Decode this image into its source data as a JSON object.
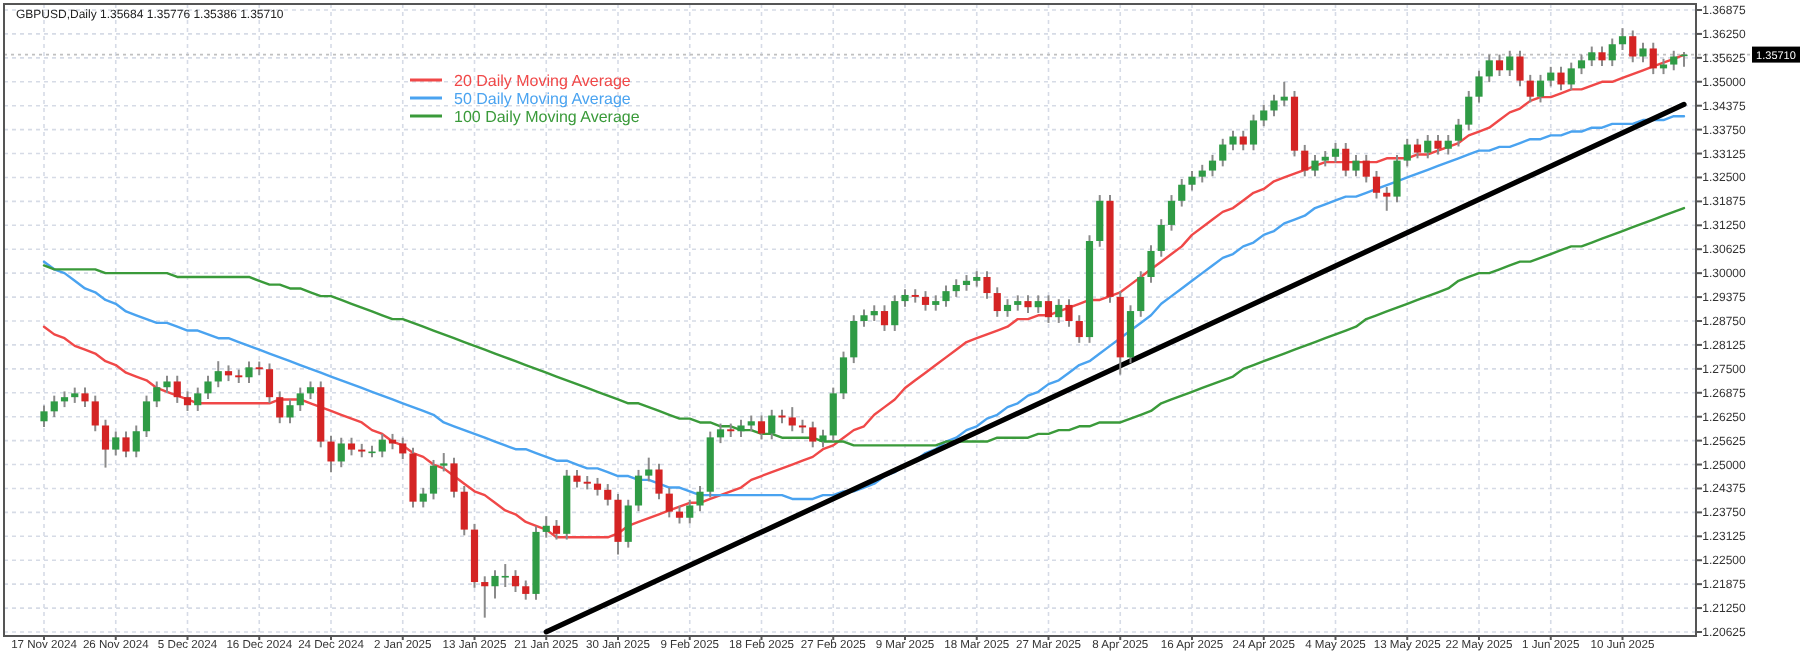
{
  "chart_data": {
    "type": "candlestick",
    "title": "GBPUSD,Daily  1.35684 1.35776 1.35386 1.35710",
    "categories": [
      "17 Nov 2024",
      null,
      null,
      null,
      null,
      null,
      null,
      "26 Nov 2024",
      null,
      null,
      null,
      null,
      null,
      null,
      "5 Dec 2024",
      null,
      null,
      null,
      null,
      null,
      null,
      "16 Dec 2024",
      null,
      null,
      null,
      null,
      null,
      null,
      "24 Dec 2024",
      null,
      null,
      null,
      null,
      null,
      null,
      "2 Jan 2025",
      null,
      null,
      null,
      null,
      null,
      null,
      "13 Jan 2025",
      null,
      null,
      null,
      null,
      null,
      null,
      "21 Jan 2025",
      null,
      null,
      null,
      null,
      null,
      null,
      "30 Jan 2025",
      null,
      null,
      null,
      null,
      null,
      null,
      "9 Feb 2025",
      null,
      null,
      null,
      null,
      null,
      null,
      "18 Feb 2025",
      null,
      null,
      null,
      null,
      null,
      null,
      "27 Feb 2025",
      null,
      null,
      null,
      null,
      null,
      null,
      "9 Mar 2025",
      null,
      null,
      null,
      null,
      null,
      null,
      "18 Mar 2025",
      null,
      null,
      null,
      null,
      null,
      null,
      "27 Mar 2025",
      null,
      null,
      null,
      null,
      null,
      null,
      "8 Apr 2025",
      null,
      null,
      null,
      null,
      null,
      null,
      "16 Apr 2025",
      null,
      null,
      null,
      null,
      null,
      null,
      "24 Apr 2025",
      null,
      null,
      null,
      null,
      null,
      null,
      "4 May 2025",
      null,
      null,
      null,
      null,
      null,
      null,
      "13 May 2025",
      null,
      null,
      null,
      null,
      null,
      null,
      "22 May 2025",
      null,
      null,
      null,
      null,
      null,
      null,
      "1 Jun 2025",
      null,
      null,
      null,
      null,
      null,
      null,
      "10 Jun 2025",
      null,
      null,
      null,
      null,
      null,
      null
    ],
    "ohlc": [
      [
        1.2613,
        1.2654,
        1.2598,
        1.2639
      ],
      [
        1.2639,
        1.268,
        1.2624,
        1.2665
      ],
      [
        1.2665,
        1.2691,
        1.265,
        1.2676
      ],
      [
        1.2676,
        1.2701,
        1.2661,
        1.2686
      ],
      [
        1.2686,
        1.2701,
        1.265,
        1.2665
      ],
      [
        1.2665,
        1.268,
        1.2587,
        1.2602
      ],
      [
        1.2602,
        1.2617,
        1.2492,
        1.2539
      ],
      [
        1.2539,
        1.2586,
        1.2524,
        1.2571
      ],
      [
        1.2571,
        1.2586,
        1.2519,
        1.2534
      ],
      [
        1.2534,
        1.2602,
        1.2519,
        1.2587
      ],
      [
        1.2587,
        1.268,
        1.2572,
        1.2665
      ],
      [
        1.2665,
        1.2717,
        1.265,
        1.2702
      ],
      [
        1.2702,
        1.2732,
        1.2687,
        1.2717
      ],
      [
        1.2717,
        1.2732,
        1.2661,
        1.2676
      ],
      [
        1.2676,
        1.2691,
        1.264,
        1.2655
      ],
      [
        1.2655,
        1.2701,
        1.264,
        1.2686
      ],
      [
        1.2686,
        1.2732,
        1.2671,
        1.2717
      ],
      [
        1.2717,
        1.277,
        1.2702,
        1.2744
      ],
      [
        1.2744,
        1.2759,
        1.2718,
        1.2733
      ],
      [
        1.2733,
        1.2748,
        1.2713,
        1.2728
      ],
      [
        1.2728,
        1.2769,
        1.2713,
        1.2754
      ],
      [
        1.2754,
        1.2769,
        1.2734,
        1.2749
      ],
      [
        1.2749,
        1.2764,
        1.2661,
        1.2676
      ],
      [
        1.2676,
        1.2691,
        1.2608,
        1.2623
      ],
      [
        1.2623,
        1.267,
        1.2608,
        1.2655
      ],
      [
        1.2655,
        1.2701,
        1.264,
        1.2686
      ],
      [
        1.2686,
        1.2717,
        1.2671,
        1.2702
      ],
      [
        1.2702,
        1.2717,
        1.2545,
        1.256
      ],
      [
        1.256,
        1.2575,
        1.248,
        1.2508
      ],
      [
        1.2508,
        1.257,
        1.2493,
        1.2555
      ],
      [
        1.2555,
        1.257,
        1.2524,
        1.2539
      ],
      [
        1.2539,
        1.2554,
        1.2519,
        1.2534
      ],
      [
        1.2534,
        1.2549,
        1.2519,
        1.2534
      ],
      [
        1.2534,
        1.258,
        1.2519,
        1.2565
      ],
      [
        1.2565,
        1.258,
        1.254,
        1.2555
      ],
      [
        1.2555,
        1.257,
        1.2514,
        1.2529
      ],
      [
        1.2529,
        1.2544,
        1.2388,
        1.2403
      ],
      [
        1.2403,
        1.2439,
        1.2388,
        1.2424
      ],
      [
        1.2424,
        1.2512,
        1.2409,
        1.2497
      ],
      [
        1.2497,
        1.253,
        1.2482,
        1.2503
      ],
      [
        1.2503,
        1.2518,
        1.2414,
        1.2429
      ],
      [
        1.2429,
        1.2444,
        1.2315,
        1.233
      ],
      [
        1.233,
        1.2345,
        1.2178,
        1.2193
      ],
      [
        1.2193,
        1.2208,
        1.21,
        1.2182
      ],
      [
        1.2182,
        1.2224,
        1.215,
        1.2209
      ],
      [
        1.2209,
        1.224,
        1.218,
        1.2209
      ],
      [
        1.2209,
        1.2224,
        1.2167,
        1.2182
      ],
      [
        1.2182,
        1.2197,
        1.2147,
        1.2162
      ],
      [
        1.2162,
        1.2339,
        1.2147,
        1.2324
      ],
      [
        1.2324,
        1.2365,
        1.2309,
        1.234
      ],
      [
        1.234,
        1.2355,
        1.2304,
        1.2319
      ],
      [
        1.2319,
        1.2486,
        1.2304,
        1.2471
      ],
      [
        1.2471,
        1.2486,
        1.244,
        1.2455
      ],
      [
        1.2455,
        1.247,
        1.2435,
        1.245
      ],
      [
        1.245,
        1.2465,
        1.2419,
        1.2434
      ],
      [
        1.2434,
        1.2449,
        1.2393,
        1.2408
      ],
      [
        1.2408,
        1.2423,
        1.2265,
        1.2298
      ],
      [
        1.2298,
        1.2408,
        1.2283,
        1.2393
      ],
      [
        1.2393,
        1.2486,
        1.2378,
        1.2471
      ],
      [
        1.2471,
        1.2518,
        1.2456,
        1.2487
      ],
      [
        1.2487,
        1.2502,
        1.2409,
        1.2424
      ],
      [
        1.2424,
        1.2439,
        1.2362,
        1.2377
      ],
      [
        1.2377,
        1.2392,
        1.2346,
        1.2361
      ],
      [
        1.2361,
        1.2408,
        1.2346,
        1.2393
      ],
      [
        1.2393,
        1.2444,
        1.2378,
        1.2429
      ],
      [
        1.2429,
        1.2586,
        1.2414,
        1.2571
      ],
      [
        1.2571,
        1.2607,
        1.2556,
        1.2592
      ],
      [
        1.2592,
        1.2607,
        1.2572,
        1.2587
      ],
      [
        1.2587,
        1.2617,
        1.2572,
        1.2602
      ],
      [
        1.2602,
        1.2628,
        1.2587,
        1.2613
      ],
      [
        1.2613,
        1.2628,
        1.2566,
        1.2581
      ],
      [
        1.2581,
        1.2643,
        1.2566,
        1.2628
      ],
      [
        1.2628,
        1.2643,
        1.2608,
        1.2623
      ],
      [
        1.2623,
        1.265,
        1.2587,
        1.2602
      ],
      [
        1.2602,
        1.2617,
        1.2582,
        1.2597
      ],
      [
        1.2597,
        1.2612,
        1.2545,
        1.256
      ],
      [
        1.256,
        1.2591,
        1.2545,
        1.2576
      ],
      [
        1.2576,
        1.2701,
        1.2561,
        1.2686
      ],
      [
        1.2686,
        1.2795,
        1.2671,
        1.278
      ],
      [
        1.278,
        1.289,
        1.2765,
        1.2875
      ],
      [
        1.2875,
        1.2905,
        1.286,
        1.289
      ],
      [
        1.289,
        1.2916,
        1.2875,
        1.2901
      ],
      [
        1.2901,
        1.2916,
        1.2849,
        1.2864
      ],
      [
        1.2864,
        1.2942,
        1.2849,
        1.2927
      ],
      [
        1.2927,
        1.2958,
        1.2912,
        1.2943
      ],
      [
        1.2943,
        1.2958,
        1.2923,
        1.2938
      ],
      [
        1.2938,
        1.2953,
        1.2902,
        1.2917
      ],
      [
        1.2917,
        1.2942,
        1.2902,
        1.2927
      ],
      [
        1.2927,
        1.2968,
        1.2912,
        1.2953
      ],
      [
        1.2953,
        1.2984,
        1.2938,
        1.2969
      ],
      [
        1.2969,
        1.2995,
        1.2954,
        1.298
      ],
      [
        1.298,
        1.3005,
        1.2965,
        1.299
      ],
      [
        1.299,
        1.3005,
        1.2933,
        1.2948
      ],
      [
        1.2948,
        1.2963,
        1.2886,
        1.2901
      ],
      [
        1.2901,
        1.2932,
        1.2886,
        1.2917
      ],
      [
        1.2917,
        1.2942,
        1.2902,
        1.2927
      ],
      [
        1.2927,
        1.2942,
        1.2896,
        1.2911
      ],
      [
        1.2911,
        1.2942,
        1.2896,
        1.2927
      ],
      [
        1.2927,
        1.2942,
        1.287,
        1.2885
      ],
      [
        1.2885,
        1.2932,
        1.287,
        1.2917
      ],
      [
        1.2917,
        1.2932,
        1.286,
        1.2875
      ],
      [
        1.2875,
        1.289,
        1.2818,
        1.2833
      ],
      [
        1.2833,
        1.3099,
        1.2818,
        1.3084
      ],
      [
        1.3084,
        1.3204,
        1.3069,
        1.3189
      ],
      [
        1.3189,
        1.3204,
        1.2923,
        1.2938
      ],
      [
        1.2938,
        1.2953,
        1.2735,
        1.278
      ],
      [
        1.278,
        1.2916,
        1.2765,
        1.2901
      ],
      [
        1.2901,
        1.3005,
        1.2886,
        1.299
      ],
      [
        1.299,
        1.3073,
        1.2975,
        1.3058
      ],
      [
        1.3058,
        1.3141,
        1.3043,
        1.3126
      ],
      [
        1.3126,
        1.3204,
        1.3111,
        1.3189
      ],
      [
        1.3189,
        1.3246,
        1.3174,
        1.3231
      ],
      [
        1.3231,
        1.3267,
        1.3216,
        1.3252
      ],
      [
        1.3252,
        1.3283,
        1.3237,
        1.3268
      ],
      [
        1.3268,
        1.3309,
        1.3253,
        1.3294
      ],
      [
        1.3294,
        1.3351,
        1.3279,
        1.3336
      ],
      [
        1.3336,
        1.3372,
        1.3321,
        1.3357
      ],
      [
        1.3357,
        1.3372,
        1.3321,
        1.3336
      ],
      [
        1.3336,
        1.3414,
        1.3321,
        1.3399
      ],
      [
        1.3399,
        1.344,
        1.3384,
        1.3425
      ],
      [
        1.3425,
        1.3466,
        1.341,
        1.3451
      ],
      [
        1.3451,
        1.35,
        1.3436,
        1.3461
      ],
      [
        1.3461,
        1.3476,
        1.3305,
        1.332
      ],
      [
        1.332,
        1.3335,
        1.3253,
        1.3268
      ],
      [
        1.3268,
        1.3309,
        1.3253,
        1.3294
      ],
      [
        1.3294,
        1.3319,
        1.3279,
        1.3304
      ],
      [
        1.3304,
        1.334,
        1.3289,
        1.3325
      ],
      [
        1.3325,
        1.334,
        1.3253,
        1.3268
      ],
      [
        1.3268,
        1.3309,
        1.3253,
        1.3294
      ],
      [
        1.3294,
        1.3309,
        1.3237,
        1.3252
      ],
      [
        1.3252,
        1.3267,
        1.3195,
        1.321
      ],
      [
        1.321,
        1.3225,
        1.3163,
        1.32
      ],
      [
        1.32,
        1.3309,
        1.3185,
        1.3294
      ],
      [
        1.3294,
        1.3351,
        1.3279,
        1.3336
      ],
      [
        1.3336,
        1.3351,
        1.33,
        1.3315
      ],
      [
        1.3315,
        1.3361,
        1.33,
        1.3346
      ],
      [
        1.3346,
        1.3361,
        1.331,
        1.3325
      ],
      [
        1.3325,
        1.3361,
        1.331,
        1.3346
      ],
      [
        1.3346,
        1.3403,
        1.3331,
        1.3388
      ],
      [
        1.3388,
        1.3476,
        1.3373,
        1.3461
      ],
      [
        1.3461,
        1.3529,
        1.3446,
        1.3514
      ],
      [
        1.3514,
        1.3571,
        1.3499,
        1.3556
      ],
      [
        1.3556,
        1.3571,
        1.3515,
        1.353
      ],
      [
        1.353,
        1.3581,
        1.3515,
        1.3566
      ],
      [
        1.3566,
        1.3581,
        1.3488,
        1.3503
      ],
      [
        1.3503,
        1.3518,
        1.3446,
        1.3461
      ],
      [
        1.3461,
        1.3518,
        1.3446,
        1.3503
      ],
      [
        1.3503,
        1.3539,
        1.3488,
        1.3524
      ],
      [
        1.3524,
        1.3539,
        1.3478,
        1.3493
      ],
      [
        1.3493,
        1.355,
        1.3478,
        1.3535
      ],
      [
        1.3535,
        1.3571,
        1.352,
        1.3556
      ],
      [
        1.3556,
        1.3592,
        1.3541,
        1.3577
      ],
      [
        1.3577,
        1.3592,
        1.3541,
        1.3556
      ],
      [
        1.3556,
        1.3613,
        1.3541,
        1.3598
      ],
      [
        1.3598,
        1.364,
        1.3583,
        1.3619
      ],
      [
        1.3619,
        1.3634,
        1.3551,
        1.3566
      ],
      [
        1.3566,
        1.3602,
        1.3551,
        1.3587
      ],
      [
        1.3587,
        1.3602,
        1.352,
        1.3535
      ],
      [
        1.3535,
        1.356,
        1.352,
        1.3545
      ],
      [
        1.3545,
        1.3581,
        1.353,
        1.3566
      ],
      [
        1.3568,
        1.3578,
        1.3539,
        1.3571
      ]
    ],
    "series": [
      {
        "type": "line",
        "name": "20 Daily Moving Average",
        "color": "#f04848",
        "values": [
          1.286,
          1.284,
          1.283,
          1.281,
          1.28,
          1.279,
          1.277,
          1.276,
          1.274,
          1.273,
          1.272,
          1.27,
          1.269,
          1.268,
          1.267,
          1.266,
          1.266,
          1.266,
          1.266,
          1.266,
          1.266,
          1.266,
          1.266,
          1.267,
          1.267,
          1.267,
          1.266,
          1.265,
          1.264,
          1.263,
          1.262,
          1.261,
          1.259,
          1.258,
          1.256,
          1.255,
          1.253,
          1.252,
          1.25,
          1.249,
          1.247,
          1.245,
          1.243,
          1.242,
          1.24,
          1.238,
          1.237,
          1.235,
          1.234,
          1.233,
          1.231,
          1.231,
          1.231,
          1.231,
          1.231,
          1.231,
          1.232,
          1.234,
          1.235,
          1.236,
          1.237,
          1.238,
          1.239,
          1.24,
          1.24,
          1.241,
          1.242,
          1.243,
          1.244,
          1.246,
          1.247,
          1.248,
          1.249,
          1.25,
          1.251,
          1.252,
          1.254,
          1.255,
          1.257,
          1.259,
          1.26,
          1.263,
          1.265,
          1.267,
          1.27,
          1.272,
          1.274,
          1.276,
          1.278,
          1.28,
          1.282,
          1.283,
          1.284,
          1.285,
          1.286,
          1.288,
          1.288,
          1.289,
          1.289,
          1.29,
          1.291,
          1.292,
          1.293,
          1.293,
          1.294,
          1.295,
          1.297,
          1.299,
          1.301,
          1.303,
          1.305,
          1.307,
          1.31,
          1.312,
          1.314,
          1.316,
          1.317,
          1.319,
          1.321,
          1.322,
          1.324,
          1.325,
          1.326,
          1.327,
          1.328,
          1.329,
          1.329,
          1.329,
          1.329,
          1.329,
          1.329,
          1.33,
          1.33,
          1.33,
          1.331,
          1.331,
          1.332,
          1.333,
          1.334,
          1.336,
          1.337,
          1.338,
          1.34,
          1.342,
          1.343,
          1.345,
          1.346,
          1.346,
          1.347,
          1.348,
          1.348,
          1.349,
          1.35,
          1.35,
          1.351,
          1.352,
          1.353,
          1.354,
          1.355,
          1.356,
          1.357
        ]
      },
      {
        "type": "line",
        "name": "50 Daily Moving Average",
        "color": "#4aa3f0",
        "values": [
          1.303,
          1.301,
          1.3,
          1.298,
          1.296,
          1.295,
          1.293,
          1.292,
          1.29,
          1.289,
          1.288,
          1.287,
          1.287,
          1.286,
          1.285,
          1.285,
          1.284,
          1.283,
          1.283,
          1.282,
          1.281,
          1.28,
          1.279,
          1.278,
          1.277,
          1.276,
          1.275,
          1.274,
          1.273,
          1.272,
          1.271,
          1.27,
          1.269,
          1.268,
          1.267,
          1.266,
          1.265,
          1.264,
          1.263,
          1.261,
          1.26,
          1.259,
          1.258,
          1.257,
          1.256,
          1.255,
          1.254,
          1.254,
          1.253,
          1.252,
          1.251,
          1.251,
          1.25,
          1.249,
          1.249,
          1.248,
          1.247,
          1.247,
          1.246,
          1.246,
          1.245,
          1.244,
          1.244,
          1.243,
          1.242,
          1.242,
          1.242,
          1.242,
          1.242,
          1.242,
          1.242,
          1.242,
          1.242,
          1.241,
          1.241,
          1.241,
          1.242,
          1.242,
          1.243,
          1.243,
          1.244,
          1.245,
          1.247,
          1.248,
          1.25,
          1.251,
          1.253,
          1.254,
          1.256,
          1.257,
          1.259,
          1.26,
          1.262,
          1.263,
          1.265,
          1.266,
          1.268,
          1.269,
          1.271,
          1.272,
          1.274,
          1.276,
          1.277,
          1.279,
          1.281,
          1.283,
          1.285,
          1.287,
          1.289,
          1.292,
          1.294,
          1.296,
          1.298,
          1.3,
          1.302,
          1.304,
          1.305,
          1.307,
          1.308,
          1.31,
          1.311,
          1.313,
          1.314,
          1.315,
          1.317,
          1.318,
          1.319,
          1.32,
          1.32,
          1.321,
          1.322,
          1.323,
          1.324,
          1.325,
          1.326,
          1.327,
          1.328,
          1.329,
          1.33,
          1.331,
          1.332,
          1.332,
          1.333,
          1.333,
          1.334,
          1.335,
          1.335,
          1.336,
          1.336,
          1.337,
          1.337,
          1.338,
          1.338,
          1.339,
          1.339,
          1.339,
          1.34,
          1.34,
          1.34,
          1.341,
          1.341
        ]
      },
      {
        "type": "line",
        "name": "100 Daily Moving Average",
        "color": "#3a9a3a",
        "values": [
          1.302,
          1.301,
          1.301,
          1.301,
          1.301,
          1.301,
          1.3,
          1.3,
          1.3,
          1.3,
          1.3,
          1.3,
          1.3,
          1.299,
          1.299,
          1.299,
          1.299,
          1.299,
          1.299,
          1.299,
          1.299,
          1.298,
          1.297,
          1.297,
          1.296,
          1.296,
          1.295,
          1.294,
          1.294,
          1.293,
          1.292,
          1.291,
          1.29,
          1.289,
          1.288,
          1.288,
          1.287,
          1.286,
          1.285,
          1.284,
          1.283,
          1.282,
          1.281,
          1.28,
          1.279,
          1.278,
          1.277,
          1.276,
          1.275,
          1.274,
          1.273,
          1.272,
          1.271,
          1.27,
          1.269,
          1.268,
          1.267,
          1.266,
          1.266,
          1.265,
          1.264,
          1.263,
          1.262,
          1.262,
          1.261,
          1.261,
          1.26,
          1.26,
          1.259,
          1.259,
          1.258,
          1.258,
          1.257,
          1.257,
          1.257,
          1.257,
          1.256,
          1.256,
          1.256,
          1.255,
          1.255,
          1.255,
          1.255,
          1.255,
          1.255,
          1.255,
          1.255,
          1.255,
          1.256,
          1.256,
          1.256,
          1.256,
          1.256,
          1.257,
          1.257,
          1.257,
          1.257,
          1.258,
          1.258,
          1.259,
          1.259,
          1.26,
          1.26,
          1.261,
          1.261,
          1.261,
          1.262,
          1.263,
          1.264,
          1.266,
          1.267,
          1.268,
          1.269,
          1.27,
          1.271,
          1.272,
          1.273,
          1.275,
          1.276,
          1.277,
          1.278,
          1.279,
          1.28,
          1.281,
          1.282,
          1.283,
          1.284,
          1.285,
          1.286,
          1.288,
          1.289,
          1.29,
          1.291,
          1.292,
          1.293,
          1.294,
          1.295,
          1.296,
          1.298,
          1.299,
          1.3,
          1.3,
          1.301,
          1.302,
          1.303,
          1.303,
          1.304,
          1.305,
          1.306,
          1.307,
          1.307,
          1.308,
          1.309,
          1.31,
          1.311,
          1.312,
          1.313,
          1.314,
          1.315,
          1.316,
          1.317
        ]
      },
      {
        "type": "line",
        "color": "#000000",
        "values": [
          null,
          null,
          null,
          null,
          null,
          null,
          null,
          null,
          null,
          null,
          null,
          null,
          null,
          null,
          null,
          null,
          null,
          null,
          null,
          null,
          null,
          null,
          null,
          null,
          null,
          null,
          null,
          null,
          null,
          null,
          null,
          null,
          null,
          null,
          null,
          null,
          null,
          null,
          null,
          null,
          null,
          null,
          null,
          null,
          null,
          null,
          null,
          null,
          null,
          1.2063,
          null,
          null,
          null,
          null,
          null,
          null,
          null,
          null,
          null,
          null,
          null,
          null,
          null,
          null,
          null,
          null,
          null,
          null,
          null,
          null,
          null,
          null,
          null,
          null,
          null,
          null,
          null,
          null,
          null,
          null,
          null,
          null,
          null,
          null,
          null,
          null,
          null,
          null,
          null,
          null,
          null,
          null,
          null,
          null,
          null,
          null,
          null,
          null,
          null,
          null,
          null,
          null,
          null,
          null,
          null,
          null,
          null,
          null,
          null,
          null,
          null,
          null,
          null,
          null,
          null,
          null,
          null,
          null,
          null,
          null,
          null,
          null,
          null,
          null,
          null,
          null,
          null,
          null,
          null,
          null,
          null,
          null,
          null,
          null,
          null,
          null,
          null,
          null,
          null,
          null,
          null,
          null,
          null,
          null,
          null,
          null,
          null,
          null,
          null,
          null,
          null,
          null,
          null,
          null,
          null,
          null,
          null,
          null,
          null,
          null,
          1.3441
        ]
      }
    ],
    "ylim": [
      1.20625,
      1.36875
    ],
    "yticks": [
      {
        "value": 1.20625,
        "label": "1.20625"
      },
      {
        "value": 1.2125,
        "label": "1.21250"
      },
      {
        "value": 1.21875,
        "label": "1.21875"
      },
      {
        "value": 1.225,
        "label": "1.22500"
      },
      {
        "value": 1.23125,
        "label": "1.23125"
      },
      {
        "value": 1.2375,
        "label": "1.23750"
      },
      {
        "value": 1.24375,
        "label": "1.24375"
      },
      {
        "value": 1.25,
        "label": "1.25000"
      },
      {
        "value": 1.25625,
        "label": "1.25625"
      },
      {
        "value": 1.2625,
        "label": "1.26250"
      },
      {
        "value": 1.26875,
        "label": "1.26875"
      },
      {
        "value": 1.275,
        "label": "1.27500"
      },
      {
        "value": 1.28125,
        "label": "1.28125"
      },
      {
        "value": 1.2875,
        "label": "1.28750"
      },
      {
        "value": 1.29375,
        "label": "1.29375"
      },
      {
        "value": 1.3,
        "label": "1.30000"
      },
      {
        "value": 1.30625,
        "label": "1.30625"
      },
      {
        "value": 1.3125,
        "label": "1.31250"
      },
      {
        "value": 1.31875,
        "label": "1.31875"
      },
      {
        "value": 1.325,
        "label": "1.32500"
      },
      {
        "value": 1.33125,
        "label": "1.33125"
      },
      {
        "value": 1.3375,
        "label": "1.33750"
      },
      {
        "value": 1.34375,
        "label": "1.34375"
      },
      {
        "value": 1.35,
        "label": "1.35000"
      },
      {
        "value": 1.35625,
        "label": "1.35625"
      },
      {
        "value": 1.3625,
        "label": "1.36250"
      },
      {
        "value": 1.36875,
        "label": "1.36875"
      }
    ],
    "ref_lines": [
      {
        "axis": "y",
        "value": 1.3571,
        "label": "1.35710",
        "color": "#c0c0c0",
        "line_style": "dotted"
      }
    ],
    "grid": true,
    "legend": "top left"
  }
}
